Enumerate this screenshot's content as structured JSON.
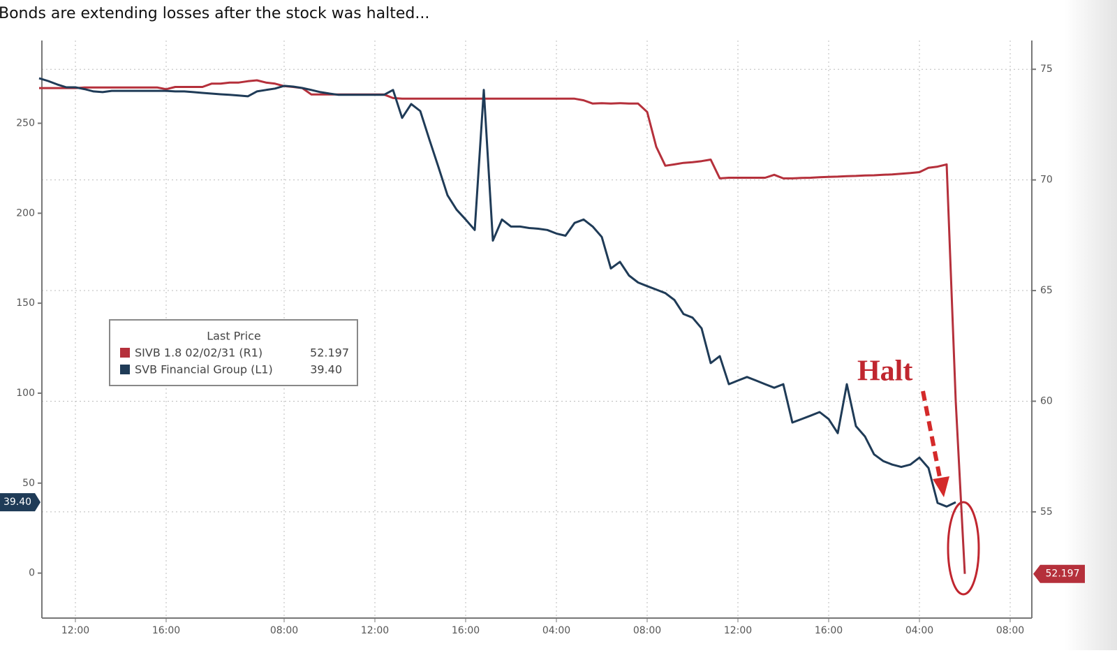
{
  "chart_data": {
    "type": "line",
    "title": "Bonds are extending losses after the stock was halted...",
    "legend_title": "Last Price",
    "annotations": [
      {
        "text": "Halt"
      }
    ],
    "categories": [
      null,
      null,
      null,
      null,
      "12:00",
      null,
      null,
      null,
      null,
      null,
      null,
      null,
      null,
      null,
      "16:00",
      null,
      null,
      null,
      null,
      null,
      null,
      null,
      null,
      null,
      null,
      null,
      null,
      "08:00",
      null,
      null,
      null,
      null,
      null,
      null,
      null,
      null,
      null,
      "12:00",
      null,
      null,
      null,
      null,
      null,
      null,
      null,
      null,
      null,
      "16:00",
      null,
      null,
      null,
      null,
      null,
      null,
      null,
      null,
      null,
      "04:00",
      null,
      null,
      null,
      null,
      null,
      null,
      null,
      null,
      null,
      "08:00",
      null,
      null,
      null,
      null,
      null,
      null,
      null,
      null,
      null,
      "12:00",
      null,
      null,
      null,
      null,
      null,
      null,
      null,
      null,
      null,
      "16:00",
      null,
      null,
      null,
      null,
      null,
      null,
      null,
      null,
      null,
      "04:00",
      null,
      null,
      null,
      null,
      null,
      null,
      null,
      null,
      null,
      "08:00",
      null,
      null
    ],
    "series": [
      {
        "name": "SIVB 1.8 02/02/31 (R1)",
        "color": "#b5303b",
        "axis": "y2",
        "values": [
          74.15,
          74.15,
          74.15,
          74.15,
          74.15,
          74.18,
          74.18,
          74.18,
          74.18,
          74.18,
          74.18,
          74.18,
          74.18,
          74.18,
          74.1,
          74.2,
          74.2,
          74.2,
          74.2,
          74.35,
          74.35,
          74.4,
          74.4,
          74.46,
          74.5,
          74.4,
          74.35,
          74.24,
          74.2,
          74.15,
          73.86,
          73.86,
          73.86,
          73.86,
          73.86,
          73.86,
          73.86,
          73.86,
          73.86,
          73.7,
          73.67,
          73.67,
          73.67,
          73.67,
          73.67,
          73.67,
          73.67,
          73.67,
          73.67,
          73.67,
          73.67,
          73.67,
          73.67,
          73.67,
          73.67,
          73.67,
          73.67,
          73.67,
          73.67,
          73.67,
          73.6,
          73.45,
          73.47,
          73.45,
          73.47,
          73.45,
          73.45,
          73.07,
          71.5,
          70.64,
          70.7,
          70.77,
          70.8,
          70.85,
          70.92,
          70.07,
          70.1,
          70.1,
          70.1,
          70.1,
          70.1,
          70.23,
          70.07,
          70.07,
          70.09,
          70.1,
          70.12,
          70.14,
          70.15,
          70.17,
          70.18,
          70.2,
          70.21,
          70.23,
          70.25,
          70.28,
          70.31,
          70.35,
          70.55,
          70.6,
          70.7,
          60,
          52.197,
          null,
          null,
          null,
          null,
          null,
          null,
          null
        ]
      },
      {
        "name": "SVB Financial Group (L1)",
        "color": "#1f3b57",
        "values": [
          275,
          273.5,
          271.6,
          270,
          270,
          269,
          267.7,
          267.3,
          268,
          268,
          268,
          268,
          268,
          268,
          268,
          267.7,
          267.7,
          267.3,
          266.9,
          266.5,
          266.1,
          265.8,
          265.4,
          265,
          267.7,
          268.5,
          269.3,
          270.8,
          270.4,
          269.6,
          268.5,
          267.3,
          266.5,
          265.8,
          265.8,
          265.8,
          265.8,
          265.8,
          265.8,
          268.5,
          253,
          260.7,
          256.8,
          241,
          225.7,
          210,
          202,
          196.5,
          190.7,
          268.5,
          184.8,
          196.5,
          192.6,
          192.6,
          191.8,
          191.4,
          190.7,
          188.7,
          187.5,
          194.6,
          196.5,
          192.6,
          186.8,
          169.3,
          173,
          165.4,
          161.5,
          159.5,
          157.6,
          155.6,
          151.8,
          144,
          142,
          136,
          116.7,
          120.6,
          105,
          107,
          109,
          107,
          105,
          103,
          105,
          83.7,
          85.6,
          87.5,
          89.5,
          85.6,
          77.8,
          105,
          81.7,
          75.9,
          66,
          62.3,
          60.3,
          59,
          60.3,
          64.2,
          58.4,
          39,
          37,
          39.4,
          null,
          null,
          null,
          null,
          null,
          null,
          null,
          null
        ],
        "value_labels": [
          null,
          null,
          null,
          null,
          null,
          null,
          null,
          null,
          null,
          null,
          null,
          null,
          null,
          null,
          null,
          null,
          null,
          null,
          null,
          null,
          null,
          null,
          null,
          null,
          null,
          null,
          null,
          null,
          null,
          null,
          null,
          null,
          null,
          null,
          null,
          null,
          null,
          null,
          null,
          null,
          null,
          null,
          null,
          null,
          null,
          null,
          null,
          null,
          null,
          null,
          null,
          null,
          null,
          null,
          null,
          null,
          null,
          null,
          null,
          null,
          null,
          null,
          null,
          null,
          null,
          null,
          null,
          null,
          null,
          null,
          null,
          null,
          null,
          null,
          null,
          null,
          null,
          null,
          null,
          null,
          null,
          null,
          null,
          null,
          null,
          null,
          null,
          null,
          null,
          null,
          null,
          null,
          null,
          null,
          null,
          null,
          null,
          null,
          null,
          null,
          null,
          "39.40",
          null,
          null,
          null,
          null,
          null,
          null,
          null,
          null
        ]
      }
    ],
    "ylim": [
      -25,
      296
    ],
    "yticks": [
      0,
      50,
      100,
      150,
      200,
      250
    ],
    "y2lim": [
      50.2,
      76.3
    ],
    "y2ticks": [
      55,
      60,
      65,
      70,
      75
    ],
    "grid": true
  }
}
